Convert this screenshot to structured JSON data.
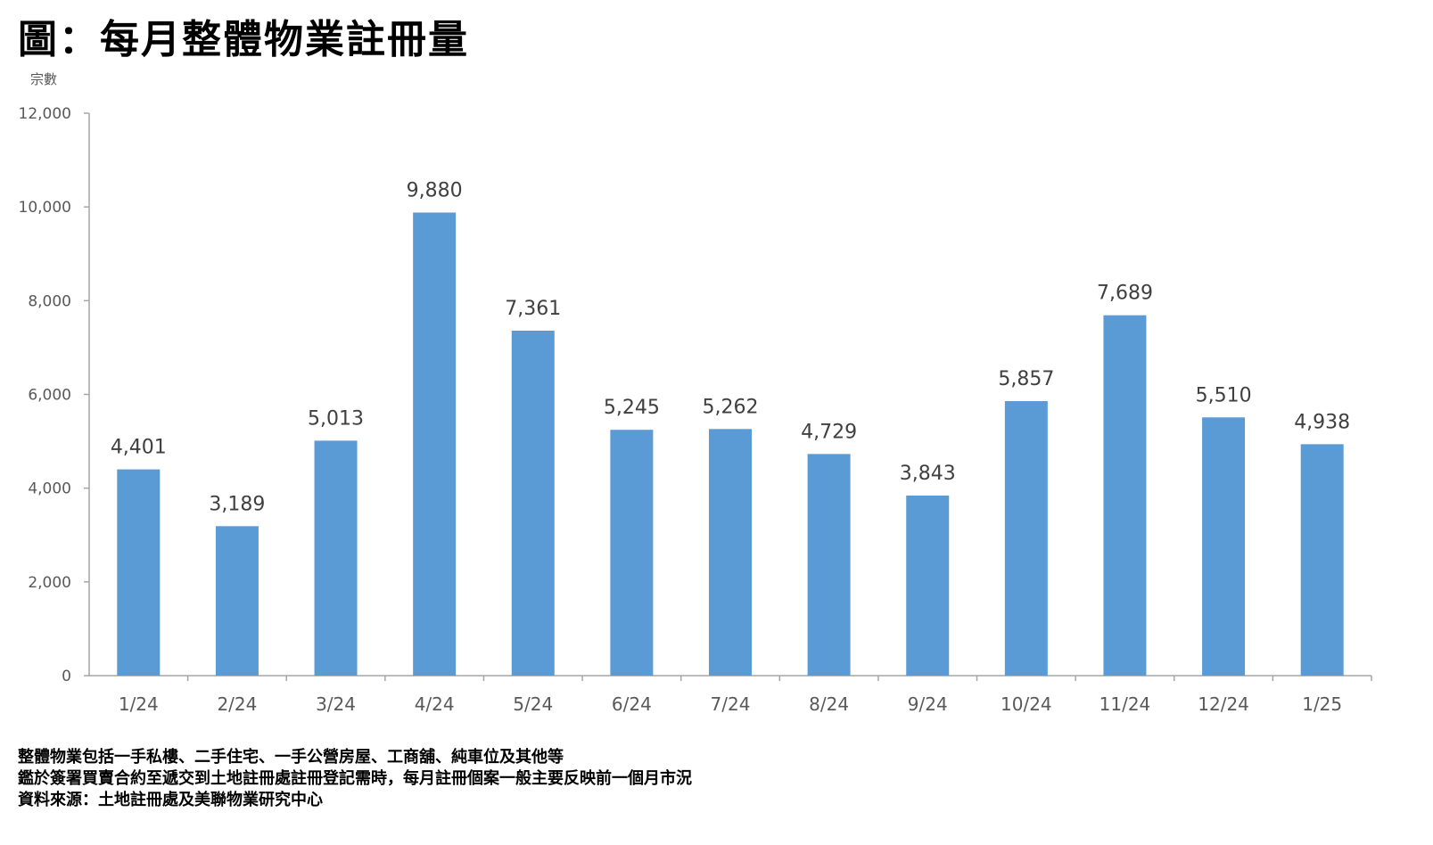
{
  "title": "圖：每月整體物業註冊量",
  "notes": [
    "整體物業包括一手私樓、二手住宅、一手公營房屋、工商舖、純車位及其他等",
    "鑑於簽署買賣合約至遞交到土地註冊處註冊登記需時，每月註冊個案一般主要反映前一個月市況",
    "資料來源：土地註冊處及美聯物業研究中心"
  ],
  "colors": {
    "bar": "#5b9bd5",
    "axis": "#a6a6a6",
    "tick_text": "#595959",
    "label_text": "#404040"
  },
  "chart_data": {
    "type": "bar",
    "ylabel": "宗數",
    "categories": [
      "1/24",
      "2/24",
      "3/24",
      "4/24",
      "5/24",
      "6/24",
      "7/24",
      "8/24",
      "9/24",
      "10/24",
      "11/24",
      "12/24",
      "1/25"
    ],
    "values": [
      4401,
      3189,
      5013,
      9880,
      7361,
      5245,
      5262,
      4729,
      3843,
      5857,
      7689,
      5510,
      4938
    ],
    "value_labels": [
      "4,401",
      "3,189",
      "5,013",
      "9,880",
      "7,361",
      "5,245",
      "5,262",
      "4,729",
      "3,843",
      "5,857",
      "7,689",
      "5,510",
      "4,938"
    ],
    "ylim": [
      0,
      12000
    ],
    "yticks": [
      0,
      2000,
      4000,
      6000,
      8000,
      10000,
      12000
    ],
    "ytick_labels": [
      "0",
      "2,000",
      "4,000",
      "6,000",
      "8,000",
      "10,000",
      "12,000"
    ],
    "grid": false,
    "legend": "none"
  }
}
